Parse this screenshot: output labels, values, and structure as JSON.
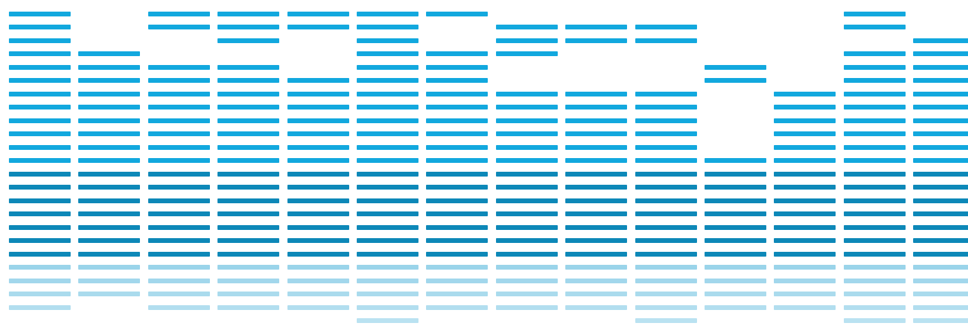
{
  "colors": {
    "upper": "#12a8de",
    "middle": "#0d88b8",
    "reflection": "#9ad4ea"
  },
  "chart_data": {
    "type": "bar",
    "segment_levels": {
      "upper_levels": [
        19,
        14,
        13,
        13,
        13,
        15,
        13,
        11,
        11,
        11,
        8,
        6,
        12,
        13
      ],
      "middle_levels": [
        7,
        7,
        7,
        7,
        7,
        7,
        7,
        7,
        7,
        7,
        7,
        7,
        7,
        7
      ],
      "reflection_levels": [
        4,
        3,
        4,
        4,
        4,
        6,
        4,
        4,
        4,
        5,
        4,
        4,
        6,
        6
      ],
      "upper_gaps": [
        [
          17,
          15
        ],
        [
          12,
          11,
          10
        ],
        [
          10,
          9
        ],
        [
          9
        ],
        [
          10,
          9,
          8
        ],
        [
          13
        ],
        [
          11,
          10
        ],
        [
          8,
          7
        ],
        [
          9,
          8,
          7
        ],
        [
          9,
          8,
          7
        ],
        [
          6,
          5,
          4,
          3,
          2
        ],
        [],
        [
          10
        ],
        [
          12,
          11
        ]
      ]
    }
  }
}
